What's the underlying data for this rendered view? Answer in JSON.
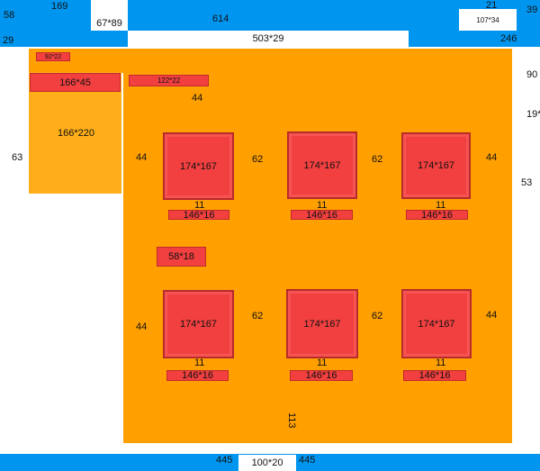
{
  "header": {
    "left_num": "58",
    "top_num": "169",
    "logo_box": "67*89",
    "center_num": "614",
    "right_top_num": "21",
    "right_box": "107*34",
    "far_right_num": "39"
  },
  "nav": {
    "left_num": "29",
    "small_num": "10",
    "center_box": "503*29",
    "right_num": "246"
  },
  "side": {
    "right_90": "90",
    "right_1983": "19*83",
    "right_53": "53",
    "left_63": "63"
  },
  "sidebar": {
    "tag": "92*22",
    "title": "166*45",
    "body": "166*220"
  },
  "main": {
    "heading": "122*22",
    "gap_top": "44",
    "sub_heading": "58*18",
    "gap_bottom": "113"
  },
  "grid": {
    "row1": {
      "left_gap": "44",
      "right_gap": "44",
      "col_gaps": [
        "62",
        "62"
      ],
      "cards": [
        {
          "box": "174*167",
          "gap": "11",
          "caption": "146*16"
        },
        {
          "box": "174*167",
          "gap": "11",
          "caption": "146*16"
        },
        {
          "box": "174*167",
          "gap": "11",
          "caption": "146*16"
        }
      ]
    },
    "row2": {
      "left_gap": "44",
      "right_gap": "44",
      "col_gaps": [
        "62",
        "62"
      ],
      "cards": [
        {
          "box": "174*167",
          "gap": "11",
          "caption": "146*16"
        },
        {
          "box": "174*167",
          "gap": "11",
          "caption": "146*16"
        },
        {
          "box": "174*167",
          "gap": "11",
          "caption": "146*16"
        }
      ]
    }
  },
  "footer": {
    "left_num": "445",
    "box": "100*20",
    "right_num": "445"
  }
}
